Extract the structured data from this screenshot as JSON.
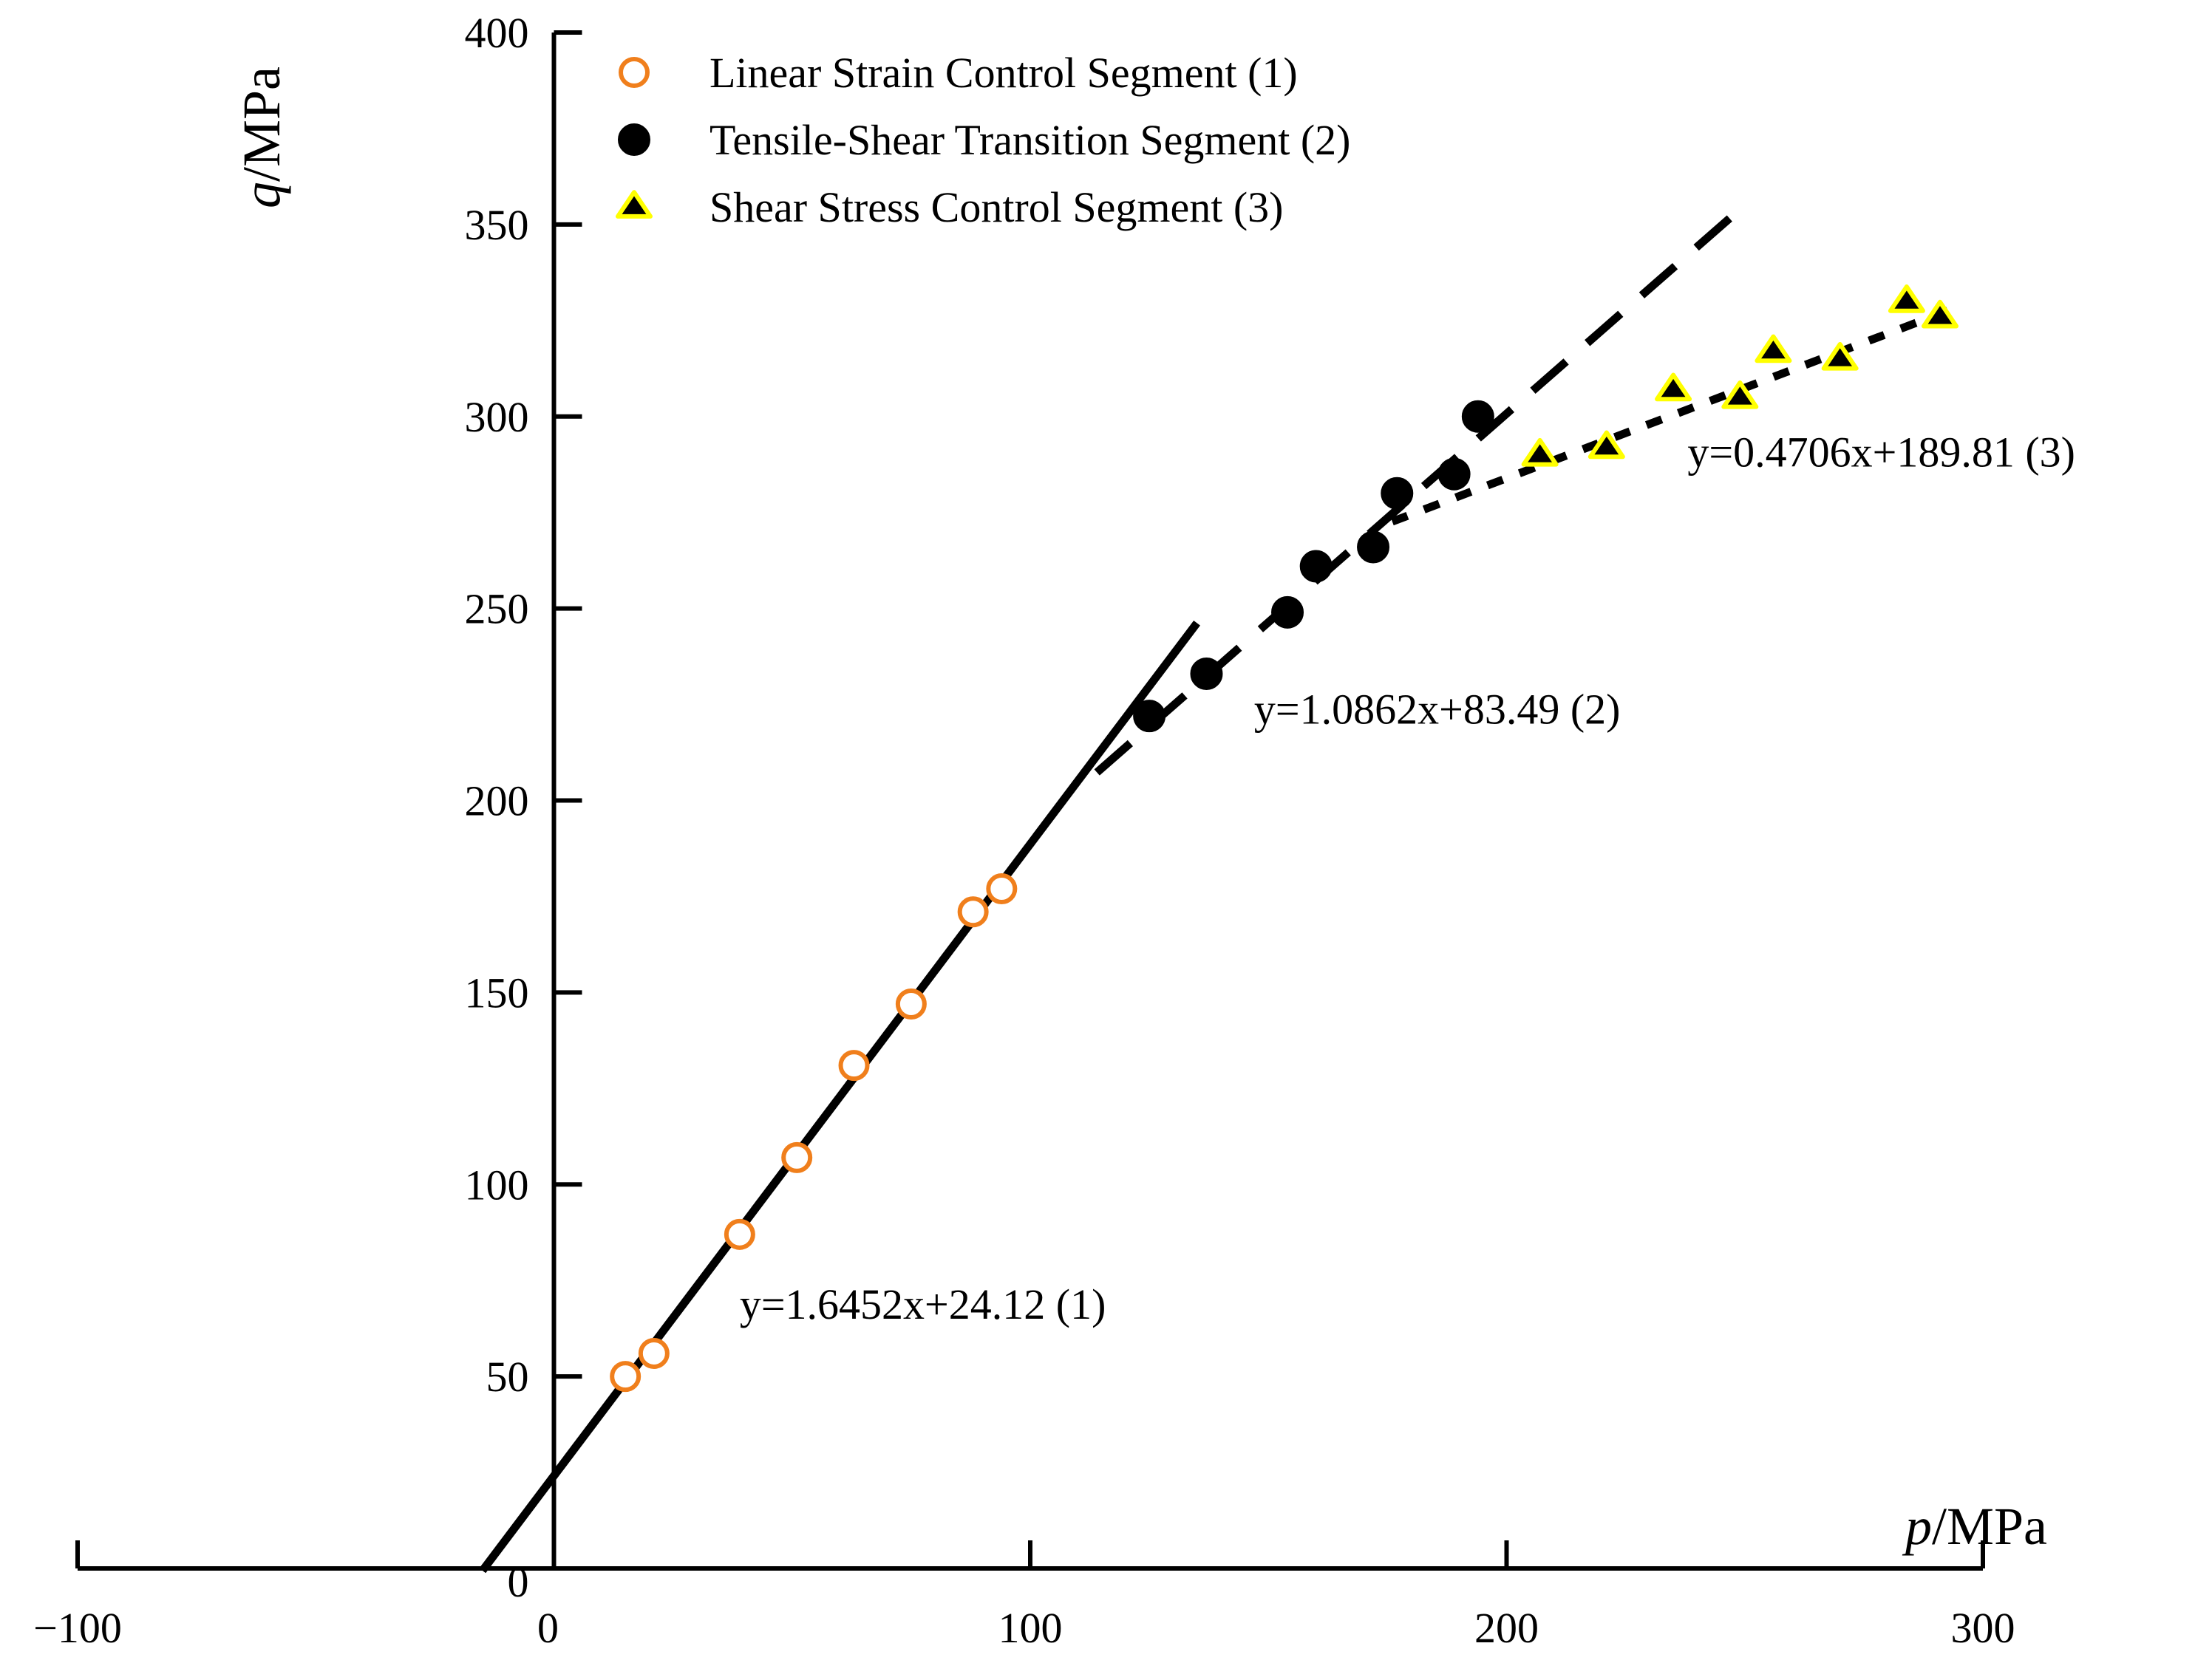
{
  "chart_data": {
    "type": "scatter",
    "title": "",
    "xlabel": {
      "symbol": "p",
      "unit": "/MPa"
    },
    "ylabel": {
      "symbol": "q",
      "unit": "/MPa"
    },
    "xlim": [
      -100,
      300
    ],
    "ylim": [
      0,
      400
    ],
    "xticks": [
      -100,
      0,
      100,
      200,
      300
    ],
    "xtick_labels": [
      "−100",
      "0",
      "100",
      "200",
      "300"
    ],
    "yticks": [
      50,
      100,
      150,
      200,
      250,
      300,
      350,
      400
    ],
    "ytick_labels": [
      "50",
      "100",
      "150",
      "200",
      "250",
      "300",
      "350",
      "400"
    ],
    "origin_label": "0",
    "grid": false,
    "legend_position": "top-left",
    "series": [
      {
        "name": "Linear Strain Control Segment (1)",
        "marker": "open-circle",
        "marker_color": "#f07f1c",
        "fill_color": "#ffffff",
        "points": [
          [
            15,
            50
          ],
          [
            21,
            56
          ],
          [
            39,
            87
          ],
          [
            51,
            107
          ],
          [
            63,
            131
          ],
          [
            75,
            147
          ],
          [
            88,
            171
          ],
          [
            94,
            177
          ]
        ]
      },
      {
        "name": "Tensile-Shear Transition Segment (2)",
        "marker": "filled-circle",
        "marker_color": "#000000",
        "fill_color": "#000000",
        "points": [
          [
            125,
            222
          ],
          [
            137,
            233
          ],
          [
            154,
            249
          ],
          [
            160,
            261
          ],
          [
            172,
            266
          ],
          [
            177,
            280
          ],
          [
            189,
            285
          ],
          [
            194,
            300
          ]
        ]
      },
      {
        "name": "Shear Stress Control Segment (3)",
        "marker": "triangle",
        "marker_color": "#000000",
        "fill_color": "#000000",
        "edge_color": "#ffff00",
        "points": [
          [
            207,
            290
          ],
          [
            221,
            292
          ],
          [
            235,
            307
          ],
          [
            249,
            305
          ],
          [
            256,
            317
          ],
          [
            270,
            315
          ],
          [
            284,
            330
          ],
          [
            291,
            326
          ]
        ]
      }
    ],
    "fit_lines": [
      {
        "label": "y=1.6452x+24.12 (1)",
        "slope": 1.6452,
        "intercept": 24.12,
        "x_range": [
          -15,
          135
        ],
        "style": "solid",
        "label_at": [
          39,
          65
        ]
      },
      {
        "label": "y=1.0862x+83.49 (2)",
        "slope": 1.0862,
        "intercept": 83.49,
        "x_range": [
          114,
          249
        ],
        "style": "dashed",
        "label_at": [
          147,
          220
        ]
      },
      {
        "label": "y=0.4706x+189.81 (3)",
        "slope": 0.4706,
        "intercept": 189.81,
        "x_range": [
          176,
          296
        ],
        "style": "dotted",
        "label_at": [
          238,
          287
        ]
      }
    ]
  }
}
